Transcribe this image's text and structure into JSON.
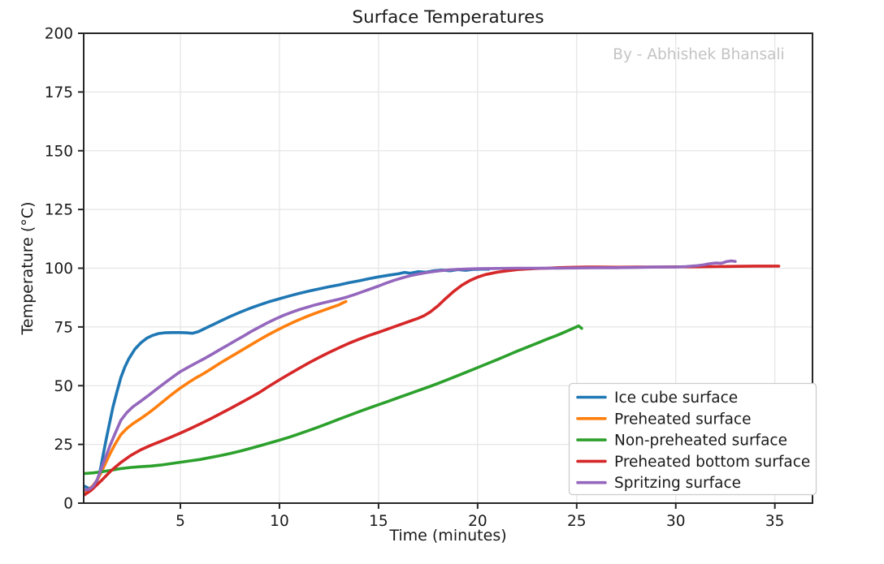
{
  "figure": {
    "background": "#ffffff"
  },
  "chart_data": {
    "type": "line",
    "title": "Surface Temperatures",
    "watermark": "By - Abhishek Bhansali",
    "xlabel": "Time (minutes)",
    "ylabel": "Temperature (°C)",
    "xlim": [
      0.12,
      36.9
    ],
    "ylim": [
      0,
      200
    ],
    "xticks": [
      5,
      10,
      15,
      20,
      25,
      30,
      35
    ],
    "yticks": [
      0,
      25,
      50,
      75,
      100,
      125,
      150,
      175,
      200
    ],
    "grid": true,
    "grid_color": "#e6e6e6",
    "spine_color": "#262626",
    "text_color": "#1a1a1a",
    "watermark_color": "#c3c3c3",
    "legend_position": "inside lower right",
    "series": [
      {
        "name": "Ice cube surface",
        "color": "#1f77b4",
        "points": [
          [
            0.17,
            7.2
          ],
          [
            0.3,
            6.6
          ],
          [
            0.45,
            6.2
          ],
          [
            0.6,
            6.6
          ],
          [
            0.75,
            8.5
          ],
          [
            0.9,
            12
          ],
          [
            1.0,
            16
          ],
          [
            1.1,
            20.5
          ],
          [
            1.25,
            27
          ],
          [
            1.4,
            33
          ],
          [
            1.6,
            41
          ],
          [
            1.8,
            47.5
          ],
          [
            2.0,
            53.5
          ],
          [
            2.2,
            58
          ],
          [
            2.4,
            61.5
          ],
          [
            2.7,
            65.5
          ],
          [
            3.0,
            68.2
          ],
          [
            3.3,
            70.2
          ],
          [
            3.6,
            71.4
          ],
          [
            3.9,
            72.2
          ],
          [
            4.2,
            72.5
          ],
          [
            4.6,
            72.6
          ],
          [
            5.0,
            72.6
          ],
          [
            5.3,
            72.5
          ],
          [
            5.6,
            72.3
          ],
          [
            5.9,
            73
          ],
          [
            6.2,
            74.2
          ],
          [
            6.6,
            75.8
          ],
          [
            7.0,
            77.4
          ],
          [
            7.5,
            79.4
          ],
          [
            8.0,
            81.2
          ],
          [
            8.5,
            82.9
          ],
          [
            9.0,
            84.4
          ],
          [
            9.5,
            85.8
          ],
          [
            10.0,
            87
          ],
          [
            10.5,
            88.2
          ],
          [
            11.0,
            89.3
          ],
          [
            11.5,
            90.3
          ],
          [
            12.0,
            91.2
          ],
          [
            12.5,
            92.1
          ],
          [
            13.0,
            92.9
          ],
          [
            13.5,
            93.8
          ],
          [
            14.0,
            94.6
          ],
          [
            14.5,
            95.5
          ],
          [
            15.0,
            96.3
          ],
          [
            15.5,
            97
          ],
          [
            16.0,
            97.6
          ],
          [
            16.3,
            98.2
          ],
          [
            16.6,
            97.9
          ],
          [
            17.0,
            98.5
          ],
          [
            17.4,
            98.3
          ],
          [
            17.8,
            98.9
          ],
          [
            18.2,
            99.2
          ],
          [
            18.6,
            98.9
          ],
          [
            19.0,
            99.4
          ],
          [
            19.4,
            99.1
          ],
          [
            19.8,
            99.5
          ],
          [
            20.2,
            99.6
          ],
          [
            20.55,
            99.6
          ]
        ]
      },
      {
        "name": "Preheated surface",
        "color": "#ff7f0e",
        "points": [
          [
            0.17,
            5.0
          ],
          [
            0.4,
            6.0
          ],
          [
            0.6,
            7.6
          ],
          [
            0.8,
            9.8
          ],
          [
            1.0,
            13
          ],
          [
            1.2,
            16.6
          ],
          [
            1.45,
            21
          ],
          [
            1.7,
            25
          ],
          [
            2.0,
            29.2
          ],
          [
            2.3,
            31.8
          ],
          [
            2.6,
            33.8
          ],
          [
            3.0,
            36
          ],
          [
            3.4,
            38.4
          ],
          [
            3.8,
            41
          ],
          [
            4.2,
            43.8
          ],
          [
            4.6,
            46.5
          ],
          [
            5.0,
            49
          ],
          [
            5.4,
            51.3
          ],
          [
            5.8,
            53.4
          ],
          [
            6.2,
            55.3
          ],
          [
            6.6,
            57.4
          ],
          [
            7.0,
            59.6
          ],
          [
            7.4,
            61.6
          ],
          [
            7.8,
            63.6
          ],
          [
            8.2,
            65.6
          ],
          [
            8.6,
            67.6
          ],
          [
            9.0,
            69.6
          ],
          [
            9.4,
            71.5
          ],
          [
            9.8,
            73.3
          ],
          [
            10.2,
            75
          ],
          [
            10.6,
            76.6
          ],
          [
            11.0,
            78.1
          ],
          [
            11.4,
            79.5
          ],
          [
            11.8,
            80.8
          ],
          [
            12.2,
            82
          ],
          [
            12.6,
            83.2
          ],
          [
            13.0,
            84.4
          ],
          [
            13.2,
            85.3
          ],
          [
            13.35,
            85.8
          ]
        ]
      },
      {
        "name": "Non-preheated surface",
        "color": "#2ca02c",
        "points": [
          [
            0.17,
            12.6
          ],
          [
            0.6,
            12.9
          ],
          [
            1.0,
            13.3
          ],
          [
            1.5,
            14
          ],
          [
            2.0,
            14.7
          ],
          [
            2.5,
            15.2
          ],
          [
            3.0,
            15.5
          ],
          [
            3.5,
            15.8
          ],
          [
            4.0,
            16.2
          ],
          [
            4.5,
            16.8
          ],
          [
            5.0,
            17.4
          ],
          [
            5.5,
            18
          ],
          [
            6.0,
            18.6
          ],
          [
            6.5,
            19.4
          ],
          [
            7.0,
            20.2
          ],
          [
            7.5,
            21.1
          ],
          [
            8.0,
            22.1
          ],
          [
            8.5,
            23.2
          ],
          [
            9.0,
            24.4
          ],
          [
            9.5,
            25.6
          ],
          [
            10.0,
            26.8
          ],
          [
            10.5,
            28.1
          ],
          [
            11.0,
            29.5
          ],
          [
            11.5,
            31
          ],
          [
            12.0,
            32.5
          ],
          [
            12.5,
            34.1
          ],
          [
            13.0,
            35.7
          ],
          [
            13.5,
            37.3
          ],
          [
            14.0,
            38.9
          ],
          [
            14.5,
            40.4
          ],
          [
            15.0,
            41.9
          ],
          [
            15.5,
            43.4
          ],
          [
            16.0,
            44.9
          ],
          [
            16.5,
            46.4
          ],
          [
            17.0,
            47.9
          ],
          [
            17.5,
            49.4
          ],
          [
            18.0,
            51
          ],
          [
            18.5,
            52.6
          ],
          [
            19.0,
            54.3
          ],
          [
            19.5,
            56
          ],
          [
            20.0,
            57.7
          ],
          [
            20.5,
            59.4
          ],
          [
            21.0,
            61.1
          ],
          [
            21.5,
            62.9
          ],
          [
            22.0,
            64.7
          ],
          [
            22.5,
            66.4
          ],
          [
            23.0,
            68.1
          ],
          [
            23.5,
            69.8
          ],
          [
            24.0,
            71.4
          ],
          [
            24.4,
            72.8
          ],
          [
            24.8,
            74.3
          ],
          [
            25.0,
            75.1
          ],
          [
            25.1,
            75.4
          ],
          [
            25.25,
            74.4
          ]
        ]
      },
      {
        "name": "Preheated bottom surface",
        "color": "#d62728",
        "points": [
          [
            0.17,
            3.6
          ],
          [
            0.5,
            5.5
          ],
          [
            1.0,
            9.5
          ],
          [
            1.5,
            13.8
          ],
          [
            2.0,
            17.3
          ],
          [
            2.5,
            20.3
          ],
          [
            3.0,
            22.7
          ],
          [
            3.5,
            24.6
          ],
          [
            4.0,
            26.3
          ],
          [
            4.5,
            28
          ],
          [
            5.0,
            29.8
          ],
          [
            5.5,
            31.7
          ],
          [
            6.0,
            33.7
          ],
          [
            6.5,
            35.8
          ],
          [
            7.0,
            38
          ],
          [
            7.5,
            40.2
          ],
          [
            8.0,
            42.5
          ],
          [
            8.5,
            44.8
          ],
          [
            9.0,
            47.2
          ],
          [
            9.5,
            49.9
          ],
          [
            10.0,
            52.5
          ],
          [
            10.5,
            55
          ],
          [
            11.0,
            57.4
          ],
          [
            11.5,
            59.8
          ],
          [
            12.0,
            62
          ],
          [
            12.5,
            64.1
          ],
          [
            13.0,
            66.1
          ],
          [
            13.5,
            68
          ],
          [
            14.0,
            69.7
          ],
          [
            14.5,
            71.3
          ],
          [
            15.0,
            72.7
          ],
          [
            15.5,
            74.2
          ],
          [
            16.0,
            75.7
          ],
          [
            16.5,
            77.2
          ],
          [
            17.0,
            78.7
          ],
          [
            17.3,
            79.8
          ],
          [
            17.6,
            81.3
          ],
          [
            18.0,
            84
          ],
          [
            18.4,
            87.2
          ],
          [
            18.8,
            90.2
          ],
          [
            19.2,
            92.7
          ],
          [
            19.6,
            94.7
          ],
          [
            20.0,
            96.2
          ],
          [
            20.4,
            97.3
          ],
          [
            21.0,
            98.3
          ],
          [
            21.5,
            98.9
          ],
          [
            22.0,
            99.4
          ],
          [
            22.5,
            99.7
          ],
          [
            23.0,
            99.9
          ],
          [
            23.5,
            100
          ],
          [
            24.0,
            100.2
          ],
          [
            24.5,
            100.3
          ],
          [
            25.0,
            100.4
          ],
          [
            25.5,
            100.5
          ],
          [
            26.0,
            100.5
          ],
          [
            27.0,
            100.4
          ],
          [
            28.0,
            100.5
          ],
          [
            29.0,
            100.5
          ],
          [
            30.0,
            100.6
          ],
          [
            31.0,
            100.6
          ],
          [
            32.0,
            100.7
          ],
          [
            33.0,
            100.8
          ],
          [
            34.0,
            100.9
          ],
          [
            35.2,
            100.9
          ]
        ]
      },
      {
        "name": "Spritzing surface",
        "color": "#9467bd",
        "points": [
          [
            0.17,
            5.6
          ],
          [
            0.4,
            5.9
          ],
          [
            0.6,
            7.2
          ],
          [
            0.8,
            10
          ],
          [
            1.0,
            14.5
          ],
          [
            1.2,
            19
          ],
          [
            1.45,
            24.5
          ],
          [
            1.7,
            29.5
          ],
          [
            2.0,
            35.3
          ],
          [
            2.3,
            38.6
          ],
          [
            2.6,
            41
          ],
          [
            3.0,
            43.4
          ],
          [
            3.4,
            45.9
          ],
          [
            3.8,
            48.5
          ],
          [
            4.2,
            51.1
          ],
          [
            4.6,
            53.6
          ],
          [
            5.0,
            56
          ],
          [
            5.4,
            57.9
          ],
          [
            5.8,
            59.7
          ],
          [
            6.2,
            61.5
          ],
          [
            6.6,
            63.4
          ],
          [
            7.0,
            65.4
          ],
          [
            7.4,
            67.3
          ],
          [
            7.8,
            69.3
          ],
          [
            8.2,
            71.2
          ],
          [
            8.6,
            73.2
          ],
          [
            9.0,
            75
          ],
          [
            9.4,
            76.8
          ],
          [
            9.8,
            78.4
          ],
          [
            10.2,
            79.9
          ],
          [
            10.6,
            81.2
          ],
          [
            11.0,
            82.4
          ],
          [
            11.4,
            83.4
          ],
          [
            11.8,
            84.4
          ],
          [
            12.2,
            85.2
          ],
          [
            12.6,
            86
          ],
          [
            13.0,
            86.8
          ],
          [
            13.4,
            87.7
          ],
          [
            13.8,
            88.8
          ],
          [
            14.2,
            90
          ],
          [
            14.6,
            91.2
          ],
          [
            15.0,
            92.4
          ],
          [
            15.4,
            93.7
          ],
          [
            15.8,
            94.9
          ],
          [
            16.2,
            95.9
          ],
          [
            16.6,
            96.8
          ],
          [
            17.0,
            97.5
          ],
          [
            17.4,
            98.1
          ],
          [
            17.8,
            98.6
          ],
          [
            18.2,
            99
          ],
          [
            18.6,
            99.3
          ],
          [
            19.0,
            99.5
          ],
          [
            19.5,
            99.7
          ],
          [
            20.0,
            99.8
          ],
          [
            21.0,
            99.9
          ],
          [
            22.0,
            100
          ],
          [
            23.0,
            100
          ],
          [
            24.0,
            100
          ],
          [
            25.0,
            100.1
          ],
          [
            26.0,
            100.2
          ],
          [
            27.0,
            100.2
          ],
          [
            28.0,
            100.3
          ],
          [
            28.5,
            100.4
          ],
          [
            29.0,
            100.5
          ],
          [
            29.5,
            100.5
          ],
          [
            30.0,
            100.5
          ],
          [
            30.5,
            100.7
          ],
          [
            31.0,
            101
          ],
          [
            31.4,
            101.4
          ],
          [
            31.7,
            101.9
          ],
          [
            32.0,
            102.2
          ],
          [
            32.3,
            102.1
          ],
          [
            32.55,
            102.8
          ],
          [
            32.8,
            103.1
          ],
          [
            33.0,
            102.9
          ]
        ]
      }
    ]
  }
}
